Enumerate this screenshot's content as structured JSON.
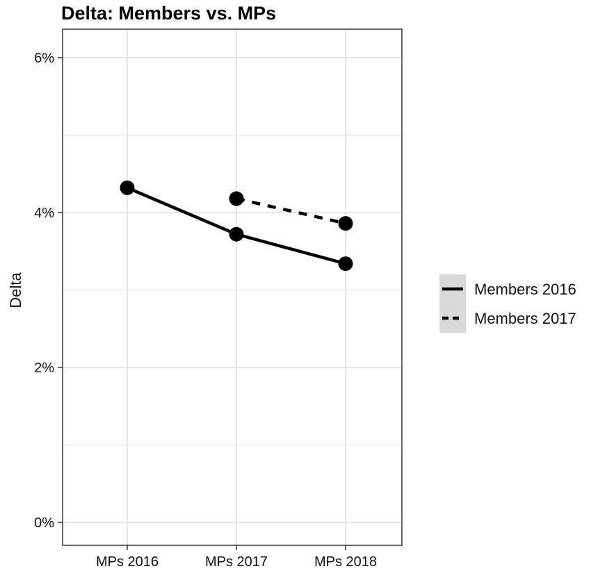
{
  "chart_data": {
    "type": "line",
    "title": "Delta: Members vs. MPs",
    "xlabel": "",
    "ylabel": "Delta",
    "categories": [
      "MPs 2016",
      "MPs 2017",
      "MPs 2018"
    ],
    "y_ticks": [
      0,
      2,
      4,
      6
    ],
    "y_tick_labels": [
      "0%",
      "2%",
      "4%",
      "6%"
    ],
    "ylim": [
      0,
      6
    ],
    "grid": true,
    "legend_position": "right",
    "series": [
      {
        "name": "Members 2016",
        "line_style": "solid",
        "values": [
          4.32,
          3.72,
          3.34
        ]
      },
      {
        "name": "Members 2017",
        "line_style": "dashed",
        "values": [
          null,
          4.18,
          3.86
        ]
      }
    ],
    "colors": {
      "line": "#000000",
      "grid": "#e6e6e6",
      "panel_border": "#333333",
      "legend_key_bg": "#d9d9d9"
    }
  }
}
